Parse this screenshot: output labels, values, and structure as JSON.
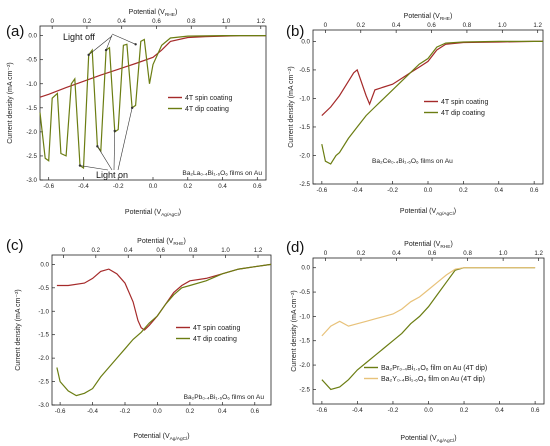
{
  "colors": {
    "spin": "#a52a2a",
    "dip": "#6b7d12",
    "y_dip": "#e8c27a",
    "axis": "#222222"
  },
  "labels": {
    "y_axis": "Current density (mA cm⁻²)",
    "top_axis": "Potential (V",
    "top_axis_sub": "RHE",
    "bottom_axis": "Potential (V",
    "bottom_axis_sub": "Ag/AgCl",
    "close_paren": ")"
  },
  "chart_data": [
    {
      "type": "line",
      "panel_label": "(a)",
      "xlim": [
        -0.65,
        0.65
      ],
      "ylim": [
        -3.0,
        0.2
      ],
      "xticks": [
        "-0.6",
        "-0.4",
        "-0.2",
        "0.0",
        "0.2",
        "0.4",
        "0.6"
      ],
      "xtick_values": [
        -0.6,
        -0.4,
        -0.2,
        0.0,
        0.2,
        0.4,
        0.6
      ],
      "yticks": [
        "0.0",
        "-0.5",
        "-1.0",
        "-1.5",
        "-2.0",
        "-2.5",
        "-3.0"
      ],
      "ytick_values": [
        0.0,
        -0.5,
        -1.0,
        -1.5,
        -2.0,
        -2.5,
        -3.0
      ],
      "top_ticks": [
        "0",
        "0.2",
        "0.4",
        "0.6",
        "0.8",
        "1.0",
        "1.2"
      ],
      "top_tick_values": [
        0,
        0.2,
        0.4,
        0.6,
        0.8,
        1.0,
        1.2
      ],
      "rhe_offset": 0.58,
      "note": "Ba₂La₀.₄Bi₁.₆O₆ films on Au",
      "annotations": [
        "Light off",
        "Light on"
      ],
      "series": [
        {
          "name": "4T spin coating",
          "style": "spin",
          "chopped": false,
          "x": [
            -0.65,
            -0.6,
            -0.5,
            -0.4,
            -0.3,
            -0.2,
            -0.1,
            0.0,
            0.05,
            0.1,
            0.2,
            0.3,
            0.4,
            0.5,
            0.6,
            0.65
          ],
          "y": [
            -1.28,
            -1.22,
            -1.08,
            -0.95,
            -0.82,
            -0.7,
            -0.58,
            -0.45,
            -0.3,
            -0.12,
            -0.04,
            -0.02,
            -0.01,
            0.0,
            0.0,
            0.0
          ]
        },
        {
          "name": "4T dip coating",
          "style": "dip",
          "chopped": true,
          "x": [
            -0.65,
            -0.62,
            -0.6,
            -0.58,
            -0.55,
            -0.53,
            -0.5,
            -0.47,
            -0.45,
            -0.42,
            -0.4,
            -0.37,
            -0.35,
            -0.32,
            -0.3,
            -0.27,
            -0.25,
            -0.22,
            -0.2,
            -0.17,
            -0.15,
            -0.12,
            -0.1,
            -0.07,
            -0.05,
            -0.02,
            0.0,
            0.05,
            0.1,
            0.2,
            0.4,
            0.65
          ],
          "y": [
            -1.6,
            -2.55,
            -2.6,
            -1.3,
            -1.2,
            -2.45,
            -2.5,
            -1.0,
            -0.9,
            -2.7,
            -2.75,
            -0.4,
            -0.3,
            -2.3,
            -2.4,
            -0.3,
            -0.25,
            -2.0,
            -1.95,
            -0.2,
            -0.18,
            -1.5,
            -1.45,
            -0.12,
            -0.08,
            -1.0,
            -0.6,
            -0.2,
            -0.05,
            -0.01,
            0.0,
            0.0
          ]
        }
      ]
    },
    {
      "type": "line",
      "panel_label": "(b)",
      "xlim": [
        -0.65,
        0.65
      ],
      "ylim": [
        -2.5,
        0.2
      ],
      "xticks": [
        "-0.6",
        "-0.4",
        "-0.2",
        "0.0",
        "0.2",
        "0.4",
        "0.6"
      ],
      "xtick_values": [
        -0.6,
        -0.4,
        -0.2,
        0.0,
        0.2,
        0.4,
        0.6
      ],
      "yticks": [
        "0.0",
        "-0.5",
        "-1.0",
        "-1.5",
        "-2.0",
        "-2.5"
      ],
      "ytick_values": [
        0.0,
        -0.5,
        -1.0,
        -1.5,
        -2.0,
        -2.5
      ],
      "top_ticks": [
        "0",
        "0.2",
        "0.4",
        "0.6",
        "0.8",
        "1.0",
        "1.2"
      ],
      "top_tick_values": [
        0,
        0.2,
        0.4,
        0.6,
        0.8,
        1.0,
        1.2
      ],
      "rhe_offset": 0.58,
      "note": "Ba₂Ce₀.₄Bi₁.₆O₆ films on Au",
      "series": [
        {
          "name": "4T spin coating",
          "style": "spin",
          "chopped": false,
          "x": [
            -0.6,
            -0.55,
            -0.5,
            -0.45,
            -0.42,
            -0.4,
            -0.35,
            -0.33,
            -0.3,
            -0.25,
            -0.2,
            -0.15,
            -0.1,
            -0.05,
            0.0,
            0.05,
            0.1,
            0.2,
            0.4,
            0.6,
            0.65
          ],
          "y": [
            -1.3,
            -1.15,
            -0.95,
            -0.7,
            -0.55,
            -0.5,
            -0.95,
            -1.1,
            -0.85,
            -0.8,
            -0.75,
            -0.65,
            -0.55,
            -0.45,
            -0.35,
            -0.15,
            -0.05,
            -0.02,
            -0.01,
            0.0,
            0.0
          ]
        },
        {
          "name": "4T dip coating",
          "style": "dip",
          "chopped": true,
          "x": [
            -0.6,
            -0.58,
            -0.55,
            -0.52,
            -0.5,
            -0.45,
            -0.4,
            -0.35,
            -0.3,
            -0.25,
            -0.2,
            -0.15,
            -0.1,
            -0.05,
            0.0,
            0.05,
            0.1,
            0.2,
            0.4,
            0.65
          ],
          "y": [
            -1.8,
            -2.1,
            -2.15,
            -2.0,
            -1.95,
            -1.7,
            -1.5,
            -1.3,
            -1.15,
            -1.0,
            -0.85,
            -0.7,
            -0.55,
            -0.4,
            -0.3,
            -0.1,
            -0.03,
            -0.01,
            0.0,
            0.0
          ]
        }
      ]
    },
    {
      "type": "line",
      "panel_label": "(c)",
      "xlim": [
        -0.65,
        0.7
      ],
      "ylim": [
        -3.0,
        0.2
      ],
      "xticks": [
        "-0.6",
        "-0.4",
        "-0.2",
        "0.0",
        "0.2",
        "0.4",
        "0.6"
      ],
      "xtick_values": [
        -0.6,
        -0.4,
        -0.2,
        0.0,
        0.2,
        0.4,
        0.6
      ],
      "yticks": [
        "0.0",
        "-0.5",
        "-1.0",
        "-1.5",
        "-2.0",
        "-2.5",
        "-3.0"
      ],
      "ytick_values": [
        0.0,
        -0.5,
        -1.0,
        -1.5,
        -2.0,
        -2.5,
        -3.0
      ],
      "top_ticks": [
        "0",
        "0.2",
        "0.4",
        "0.6",
        "0.8",
        "1.0",
        "1.2"
      ],
      "top_tick_values": [
        0,
        0.2,
        0.4,
        0.6,
        0.8,
        1.0,
        1.2
      ],
      "rhe_offset": 0.58,
      "note": "Ba₂Pb₀.₄Bi₁.₆O₆ films on Au",
      "series": [
        {
          "name": "4T spin coating",
          "style": "spin",
          "chopped": false,
          "x": [
            -0.62,
            -0.55,
            -0.45,
            -0.4,
            -0.35,
            -0.3,
            -0.25,
            -0.2,
            -0.15,
            -0.12,
            -0.1,
            -0.08,
            -0.05,
            0.0,
            0.05,
            0.1,
            0.15,
            0.2,
            0.3,
            0.4,
            0.5,
            0.6,
            0.7
          ],
          "y": [
            -0.45,
            -0.45,
            -0.4,
            -0.3,
            -0.15,
            -0.1,
            -0.2,
            -0.4,
            -0.8,
            -1.2,
            -1.35,
            -1.4,
            -1.3,
            -1.1,
            -0.85,
            -0.6,
            -0.45,
            -0.35,
            -0.3,
            -0.2,
            -0.1,
            -0.05,
            0.0
          ]
        },
        {
          "name": "4T dip coating",
          "style": "dip",
          "chopped": true,
          "x": [
            -0.62,
            -0.6,
            -0.55,
            -0.5,
            -0.45,
            -0.4,
            -0.35,
            -0.3,
            -0.25,
            -0.2,
            -0.15,
            -0.1,
            -0.05,
            0.0,
            0.05,
            0.1,
            0.15,
            0.2,
            0.3,
            0.4,
            0.5,
            0.6,
            0.7
          ],
          "y": [
            -2.2,
            -2.5,
            -2.7,
            -2.8,
            -2.75,
            -2.65,
            -2.4,
            -2.2,
            -2.0,
            -1.8,
            -1.6,
            -1.45,
            -1.25,
            -1.1,
            -0.85,
            -0.65,
            -0.5,
            -0.45,
            -0.35,
            -0.2,
            -0.1,
            -0.05,
            0.0
          ]
        }
      ]
    },
    {
      "type": "line",
      "panel_label": "(d)",
      "xlim": [
        -0.65,
        0.65
      ],
      "ylim": [
        -2.8,
        0.2
      ],
      "xticks": [
        "-0.6",
        "-0.4",
        "-0.2",
        "0.0",
        "0.2",
        "0.4",
        "0.6"
      ],
      "xtick_values": [
        -0.6,
        -0.4,
        -0.2,
        0.0,
        0.2,
        0.4,
        0.6
      ],
      "yticks": [
        "0.0",
        "-0.5",
        "-1.0",
        "-1.5",
        "-2.0",
        "-2.5"
      ],
      "ytick_values": [
        0.0,
        -0.5,
        -1.0,
        -1.5,
        -2.0,
        -2.5
      ],
      "top_ticks": [
        "0",
        "0.2",
        "0.4",
        "0.6",
        "0.8",
        "1.0",
        "1.2"
      ],
      "top_tick_values": [
        0,
        0.2,
        0.4,
        0.6,
        0.8,
        1.0,
        1.2
      ],
      "rhe_offset": 0.58,
      "series": [
        {
          "name": "Ba₂Pr₀.₄Bi₁.₆O₆ film on Au (4T dip)",
          "style": "dip",
          "chopped": true,
          "x": [
            -0.6,
            -0.55,
            -0.5,
            -0.45,
            -0.4,
            -0.35,
            -0.3,
            -0.25,
            -0.2,
            -0.15,
            -0.1,
            -0.05,
            0.0,
            0.05,
            0.1,
            0.15,
            0.2,
            0.3,
            0.4,
            0.5,
            0.6
          ],
          "y": [
            -2.3,
            -2.5,
            -2.45,
            -2.3,
            -2.1,
            -1.95,
            -1.8,
            -1.65,
            -1.5,
            -1.35,
            -1.15,
            -1.0,
            -0.8,
            -0.55,
            -0.3,
            -0.05,
            0.0,
            0.0,
            0.0,
            0.0,
            0.0
          ]
        },
        {
          "name": "Ba₂Y₀.₄Bi₁.₆O₆ film on Au (4T dip)",
          "style": "y_dip",
          "chopped": true,
          "x": [
            -0.6,
            -0.55,
            -0.5,
            -0.45,
            -0.4,
            -0.35,
            -0.3,
            -0.25,
            -0.2,
            -0.15,
            -0.1,
            -0.05,
            0.0,
            0.05,
            0.1,
            0.15,
            0.2,
            0.3,
            0.4,
            0.5,
            0.6
          ],
          "y": [
            -1.4,
            -1.2,
            -1.1,
            -1.2,
            -1.15,
            -1.1,
            -1.05,
            -1.0,
            -0.95,
            -0.85,
            -0.7,
            -0.6,
            -0.45,
            -0.3,
            -0.15,
            -0.03,
            0.0,
            0.0,
            0.0,
            0.0,
            0.0
          ]
        }
      ]
    }
  ]
}
